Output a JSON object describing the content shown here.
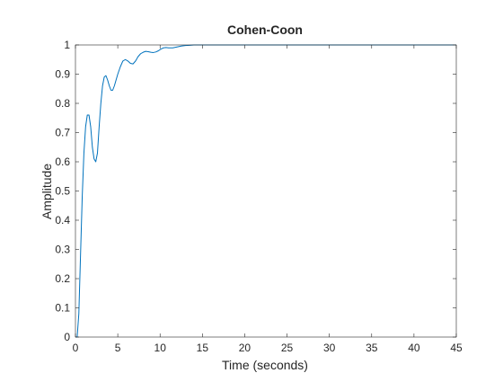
{
  "chart_data": {
    "type": "line",
    "title": "Cohen-Coon",
    "xlabel": "Time (seconds)",
    "ylabel": "Amplitude",
    "xlim": [
      0,
      45
    ],
    "ylim": [
      0,
      1
    ],
    "xticks": [
      "0",
      "5",
      "10",
      "15",
      "20",
      "25",
      "30",
      "35",
      "40",
      "45"
    ],
    "yticks": [
      "0",
      "0.1",
      "0.2",
      "0.3",
      "0.4",
      "0.5",
      "0.6",
      "0.7",
      "0.8",
      "0.9",
      "1"
    ],
    "grid": false,
    "series": [
      {
        "color": "#0072bd",
        "x": [
          0,
          0.2,
          0.4,
          0.6,
          0.8,
          1.0,
          1.2,
          1.4,
          1.6,
          1.8,
          2.0,
          2.2,
          2.4,
          2.6,
          2.8,
          3.0,
          3.2,
          3.4,
          3.6,
          3.8,
          4.0,
          4.2,
          4.4,
          4.6,
          4.8,
          5.0,
          5.3,
          5.6,
          5.9,
          6.2,
          6.5,
          6.8,
          7.1,
          7.4,
          7.7,
          8.0,
          8.3,
          8.6,
          8.9,
          9.2,
          9.5,
          9.8,
          10.1,
          10.4,
          10.7,
          11.0,
          11.5,
          12.0,
          12.5,
          13.0,
          13.5,
          14.0,
          15.0,
          16.0,
          18.0,
          20.0,
          25.0,
          30.0,
          35.0,
          40.0,
          45.0
        ],
        "y": [
          0,
          0.0,
          0.08,
          0.28,
          0.48,
          0.63,
          0.72,
          0.76,
          0.76,
          0.72,
          0.65,
          0.61,
          0.6,
          0.63,
          0.72,
          0.8,
          0.86,
          0.89,
          0.895,
          0.88,
          0.86,
          0.845,
          0.845,
          0.86,
          0.88,
          0.9,
          0.925,
          0.945,
          0.95,
          0.945,
          0.937,
          0.935,
          0.945,
          0.96,
          0.97,
          0.975,
          0.978,
          0.977,
          0.975,
          0.974,
          0.976,
          0.98,
          0.986,
          0.99,
          0.991,
          0.99,
          0.99,
          0.993,
          0.996,
          0.998,
          0.999,
          1.0,
          1.0,
          1.0,
          1.0,
          1.0,
          1.0,
          1.0,
          1.0,
          1.0,
          1.0
        ]
      }
    ]
  }
}
